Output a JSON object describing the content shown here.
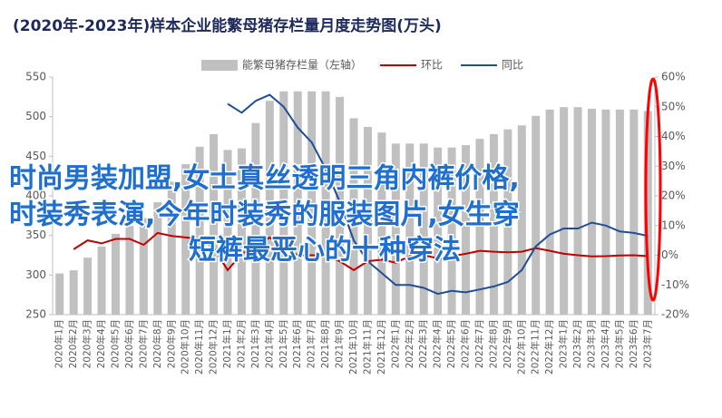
{
  "chart_data": {
    "type": "bar_line",
    "title": "(2020年-2023年)样本企业能繁母猪存栏量月度走势图(万头)",
    "categories": [
      "2020年1月",
      "2020年2月",
      "2020年3月",
      "2020年4月",
      "2020年5月",
      "2020年6月",
      "2020年7月",
      "2020年8月",
      "2020年9月",
      "2020年10月",
      "2020年11月",
      "2020年12月",
      "2021年1月",
      "2021年2月",
      "2021年3月",
      "2021年4月",
      "2021年5月",
      "2021年6月",
      "2021年7月",
      "2021年8月",
      "2021年9月",
      "2021年10月",
      "2021年11月",
      "2021年12月",
      "2022年1月",
      "2022年2月",
      "2022年3月",
      "2022年4月",
      "2022年5月",
      "2022年6月",
      "2022年7月",
      "2022年8月",
      "2022年9月",
      "2022年10月",
      "2022年11月",
      "2022年12月",
      "2023年1月",
      "2023年2月",
      "2023年3月",
      "2023年4月",
      "2023年5月",
      "2023年6月",
      "2023年7月"
    ],
    "series": [
      {
        "name": "能繁母猪存栏量（左轴）",
        "type": "bar",
        "color": "#c0c0c0",
        "values": [
          302,
          306,
          322,
          336,
          352,
          362,
          372,
          392,
          418,
          440,
          462,
          478,
          458,
          460,
          492,
          520,
          532,
          532,
          532,
          532,
          525,
          498,
          487,
          480,
          466,
          466,
          466,
          461,
          461,
          464,
          472,
          478,
          484,
          489,
          501,
          509,
          512,
          512,
          510,
          509,
          509,
          509,
          507
        ]
      },
      {
        "name": "环比",
        "type": "line",
        "axis": "y2",
        "color": "#c00000",
        "values": [
          null,
          2,
          5,
          4,
          5.5,
          5.5,
          3.5,
          7.5,
          6.5,
          6,
          5.5,
          2.5,
          -5,
          0.5,
          3,
          6,
          2.5,
          0,
          0,
          0,
          -2,
          -5,
          -2,
          -1.5,
          -2.5,
          -0.3,
          0,
          -1,
          -0.3,
          0.5,
          1.5,
          1.2,
          1,
          1.2,
          2.4,
          1.5,
          0.5,
          0,
          -0.4,
          -0.3,
          -0.1,
          0,
          -0.3
        ]
      },
      {
        "name": "同比",
        "type": "line",
        "axis": "y2",
        "color": "#1f4e99",
        "values": [
          null,
          null,
          null,
          null,
          null,
          null,
          null,
          null,
          null,
          null,
          null,
          null,
          51,
          48,
          52,
          54,
          50,
          43,
          38,
          29,
          18,
          5,
          -2,
          -6,
          -10,
          -10,
          -11,
          -13,
          -12,
          -12.5,
          -11.5,
          -10.5,
          -9,
          -5,
          3,
          7,
          9,
          9,
          11,
          10,
          8,
          7.5,
          6.5
        ]
      }
    ],
    "ylim": [
      250,
      550
    ],
    "yticks": [
      250,
      300,
      350,
      400,
      450,
      500,
      550
    ],
    "y2lim": [
      -20,
      60
    ],
    "y2ticks": [
      {
        "value": -20,
        "label": "-20%"
      },
      {
        "value": -10,
        "label": "-10%"
      },
      {
        "value": 0,
        "label": "0%"
      },
      {
        "value": 10,
        "label": "10%"
      },
      {
        "value": 20,
        "label": "20%"
      },
      {
        "value": 30,
        "label": "30%"
      },
      {
        "value": 40,
        "label": "40%"
      },
      {
        "value": 50,
        "label": "50%"
      },
      {
        "value": 60,
        "label": "60%"
      }
    ],
    "grid": false,
    "legend": "top",
    "annotations": [
      "时尚男装加盟,女士真丝透明三角内裤价格,",
      "时装秀表演,今年时装秀的服装图片,女生穿",
      "短裤最恶心的十种穿法"
    ]
  }
}
